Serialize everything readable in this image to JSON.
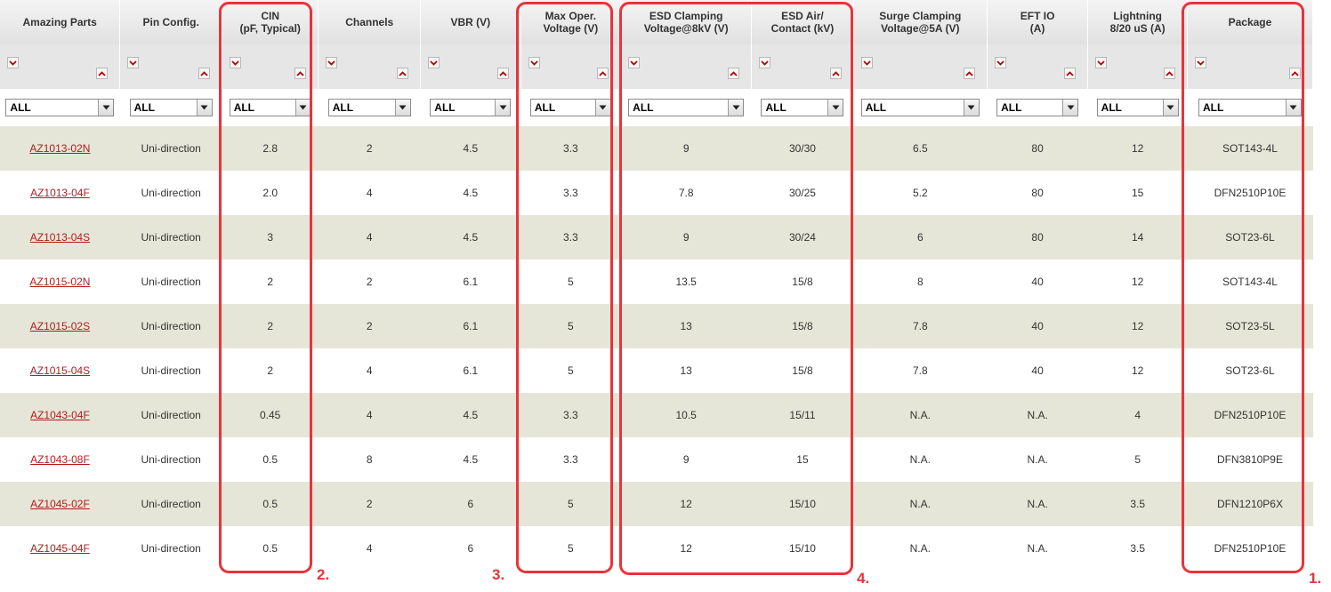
{
  "columns": [
    {
      "label": "Amazing Parts"
    },
    {
      "label": "Pin Config."
    },
    {
      "label": "CIN\n(pF, Typical)"
    },
    {
      "label": "Channels"
    },
    {
      "label": "VBR (V)"
    },
    {
      "label": "Max Oper.\nVoltage (V)"
    },
    {
      "label": "ESD Clamping\nVoltage@8kV (V)"
    },
    {
      "label": "ESD Air/\nContact (kV)"
    },
    {
      "label": "Surge Clamping\nVoltage@5A (V)"
    },
    {
      "label": "EFT IO\n(A)"
    },
    {
      "label": "Lightning\n8/20 uS (A)"
    },
    {
      "label": "Package"
    }
  ],
  "filters": [
    "ALL",
    "ALL",
    "ALL",
    "ALL",
    "ALL",
    "ALL",
    "ALL",
    "ALL",
    "ALL",
    "ALL",
    "ALL",
    "ALL"
  ],
  "rows": [
    [
      "AZ1013-02N",
      "Uni-direction",
      "2.8",
      "2",
      "4.5",
      "3.3",
      "9",
      "30/30",
      "6.5",
      "80",
      "12",
      "SOT143-4L"
    ],
    [
      "AZ1013-04F",
      "Uni-direction",
      "2.0",
      "4",
      "4.5",
      "3.3",
      "7.8",
      "30/25",
      "5.2",
      "80",
      "15",
      "DFN2510P10E"
    ],
    [
      "AZ1013-04S",
      "Uni-direction",
      "3",
      "4",
      "4.5",
      "3.3",
      "9",
      "30/24",
      "6",
      "80",
      "14",
      "SOT23-6L"
    ],
    [
      "AZ1015-02N",
      "Uni-direction",
      "2",
      "2",
      "6.1",
      "5",
      "13.5",
      "15/8",
      "8",
      "40",
      "12",
      "SOT143-4L"
    ],
    [
      "AZ1015-02S",
      "Uni-direction",
      "2",
      "2",
      "6.1",
      "5",
      "13",
      "15/8",
      "7.8",
      "40",
      "12",
      "SOT23-5L"
    ],
    [
      "AZ1015-04S",
      "Uni-direction",
      "2",
      "4",
      "6.1",
      "5",
      "13",
      "15/8",
      "7.8",
      "40",
      "12",
      "SOT23-6L"
    ],
    [
      "AZ1043-04F",
      "Uni-direction",
      "0.45",
      "4",
      "4.5",
      "3.3",
      "10.5",
      "15/11",
      "N.A.",
      "N.A.",
      "4",
      "DFN2510P10E"
    ],
    [
      "AZ1043-08F",
      "Uni-direction",
      "0.5",
      "8",
      "4.5",
      "3.3",
      "9",
      "15",
      "N.A.",
      "N.A.",
      "5",
      "DFN3810P9E"
    ],
    [
      "AZ1045-02F",
      "Uni-direction",
      "0.5",
      "2",
      "6",
      "5",
      "12",
      "15/10",
      "N.A.",
      "N.A.",
      "3.5",
      "DFN1210P6X"
    ],
    [
      "AZ1045-04F",
      "Uni-direction",
      "0.5",
      "4",
      "6",
      "5",
      "12",
      "15/10",
      "N.A.",
      "N.A.",
      "3.5",
      "DFN2510P10E"
    ]
  ],
  "annotations": [
    "1.",
    "2.",
    "3.",
    "4."
  ],
  "colors": {
    "highlight": "#e8343a",
    "link": "#b01c1c",
    "row_alt": "#e6e6d8",
    "sort_icon": "#b40000"
  },
  "icons": {
    "sort_descending": "chevron-down-icon",
    "sort_ascending": "chevron-up-icon",
    "dropdown": "dropdown-arrow-icon"
  }
}
